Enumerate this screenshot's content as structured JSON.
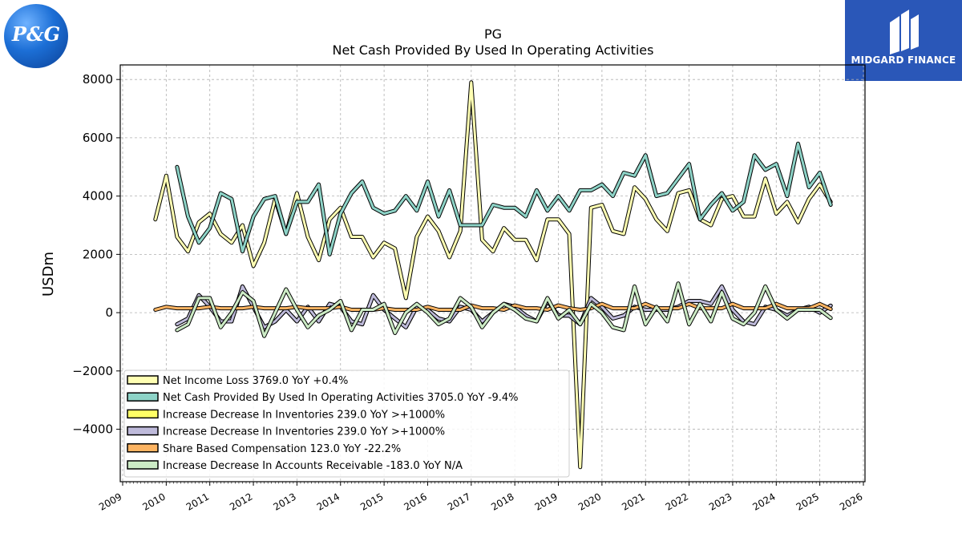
{
  "logos": {
    "left_text": "P&G",
    "right_text": "MIDGARD FINANCE"
  },
  "chart_data": {
    "type": "line",
    "title": "PG",
    "subtitle": "Net Cash Provided By Used In Operating Activities",
    "ylabel": "USDm",
    "xlim": [
      2009,
      2026
    ],
    "ylim": [
      -5800,
      8500
    ],
    "yticks": [
      -4000,
      -2000,
      0,
      2000,
      4000,
      6000,
      8000
    ],
    "ytick_labels": [
      "−4000",
      "−2000",
      "0",
      "2000",
      "4000",
      "6000",
      "8000"
    ],
    "xticks": [
      2009,
      2010,
      2011,
      2012,
      2013,
      2014,
      2015,
      2016,
      2017,
      2018,
      2019,
      2020,
      2021,
      2022,
      2023,
      2024,
      2025,
      2026
    ],
    "grid": true,
    "legend_position": "lower-left",
    "series": [
      {
        "name": "Net Income Loss  3769.0 YoY +0.4%",
        "color": "#ffffb3",
        "x": [
          2009.75,
          2010.0,
          2010.25,
          2010.5,
          2010.75,
          2011.0,
          2011.25,
          2011.5,
          2011.75,
          2012.0,
          2012.25,
          2012.5,
          2012.75,
          2013.0,
          2013.25,
          2013.5,
          2013.75,
          2014.0,
          2014.25,
          2014.5,
          2014.75,
          2015.0,
          2015.25,
          2015.5,
          2015.75,
          2016.0,
          2016.25,
          2016.5,
          2016.75,
          2017.0,
          2017.25,
          2017.5,
          2017.75,
          2018.0,
          2018.25,
          2018.5,
          2018.75,
          2019.0,
          2019.25,
          2019.5,
          2019.75,
          2020.0,
          2020.25,
          2020.5,
          2020.75,
          2021.0,
          2021.25,
          2021.5,
          2021.75,
          2022.0,
          2022.25,
          2022.5,
          2022.75,
          2023.0,
          2023.25,
          2023.5,
          2023.75,
          2024.0,
          2024.25,
          2024.5,
          2024.75,
          2025.0,
          2025.25
        ],
        "values": [
          3200,
          4700,
          2600,
          2100,
          3100,
          3400,
          2700,
          2400,
          3000,
          1600,
          2400,
          3900,
          2700,
          4100,
          2600,
          1800,
          3200,
          3600,
          2600,
          2600,
          1900,
          2400,
          2200,
          500,
          2600,
          3300,
          2800,
          1900,
          2800,
          7900,
          2500,
          2100,
          2900,
          2500,
          2500,
          1800,
          3200,
          3200,
          2700,
          -5300,
          3600,
          3700,
          2800,
          2700,
          4300,
          3900,
          3200,
          2800,
          4100,
          4200,
          3200,
          3000,
          3900,
          4000,
          3300,
          3300,
          4600,
          3400,
          3800,
          3100,
          3900,
          4400,
          3800
        ]
      },
      {
        "name": "Net Cash Provided By Used In Operating Activities  3705.0 YoY -9.4%",
        "color": "#8dd3c7",
        "x": [
          2010.25,
          2010.5,
          2010.75,
          2011.0,
          2011.25,
          2011.5,
          2011.75,
          2012.0,
          2012.25,
          2012.5,
          2012.75,
          2013.0,
          2013.25,
          2013.5,
          2013.75,
          2014.0,
          2014.25,
          2014.5,
          2014.75,
          2015.0,
          2015.25,
          2015.5,
          2015.75,
          2016.0,
          2016.25,
          2016.5,
          2016.75,
          2017.0,
          2017.25,
          2017.5,
          2017.75,
          2018.0,
          2018.25,
          2018.5,
          2018.75,
          2019.0,
          2019.25,
          2019.5,
          2019.75,
          2020.0,
          2020.25,
          2020.5,
          2020.75,
          2021.0,
          2021.25,
          2021.5,
          2021.75,
          2022.0,
          2022.25,
          2022.5,
          2022.75,
          2023.0,
          2023.25,
          2023.5,
          2023.75,
          2024.0,
          2024.25,
          2024.5,
          2024.75,
          2025.0,
          2025.25
        ],
        "values": [
          5000,
          3300,
          2400,
          2900,
          4100,
          3900,
          2100,
          3300,
          3900,
          4000,
          2700,
          3800,
          3800,
          4400,
          2000,
          3400,
          4100,
          4500,
          3600,
          3400,
          3500,
          4000,
          3500,
          4500,
          3300,
          4200,
          3000,
          3000,
          3000,
          3700,
          3600,
          3600,
          3300,
          4200,
          3500,
          4000,
          3500,
          4200,
          4200,
          4400,
          4000,
          4800,
          4700,
          5400,
          4000,
          4100,
          4600,
          5100,
          3200,
          3700,
          4100,
          3500,
          3800,
          5400,
          4900,
          5100,
          4000,
          5800,
          4300,
          4800,
          3700
        ]
      },
      {
        "name": "Increase Decrease In Inventories  239.0 YoY >+1000%",
        "color": "#ffff66",
        "x": [
          2010.25,
          2010.5,
          2010.75,
          2011.0,
          2011.25,
          2011.5,
          2011.75,
          2012.0,
          2012.25,
          2012.5,
          2012.75,
          2013.0,
          2013.25,
          2013.5,
          2013.75,
          2014.0,
          2014.25,
          2014.5,
          2014.75,
          2015.0,
          2015.25,
          2015.5,
          2015.75,
          2016.0,
          2016.25,
          2016.5,
          2016.75,
          2017.0,
          2017.25,
          2017.5,
          2017.75,
          2018.0,
          2018.25,
          2018.5,
          2018.75,
          2019.0,
          2019.25,
          2019.5,
          2019.75,
          2020.0,
          2020.25,
          2020.5,
          2020.75,
          2021.0,
          2021.25,
          2021.5,
          2021.75,
          2022.0,
          2022.25,
          2022.5,
          2022.75,
          2023.0,
          2023.25,
          2023.5,
          2023.75,
          2024.0,
          2024.25,
          2024.5,
          2024.75,
          2025.0,
          2025.25
        ],
        "values": [
          -400,
          -200,
          600,
          200,
          -300,
          -300,
          900,
          200,
          -500,
          -300,
          100,
          -300,
          200,
          -300,
          300,
          200,
          -300,
          -400,
          600,
          100,
          -200,
          -500,
          200,
          100,
          -200,
          -300,
          200,
          100,
          -300,
          0,
          300,
          200,
          -100,
          -300,
          400,
          -100,
          -100,
          -400,
          500,
          200,
          -200,
          -100,
          200,
          100,
          100,
          100,
          200,
          400,
          400,
          300,
          900,
          100,
          -300,
          -400,
          200,
          100,
          -100,
          100,
          200,
          0,
          239
        ]
      },
      {
        "name": "Increase Decrease In Inventories  239.0 YoY >+1000%",
        "color": "#bebada",
        "x": [
          2010.25,
          2010.5,
          2010.75,
          2011.0,
          2011.25,
          2011.5,
          2011.75,
          2012.0,
          2012.25,
          2012.5,
          2012.75,
          2013.0,
          2013.25,
          2013.5,
          2013.75,
          2014.0,
          2014.25,
          2014.5,
          2014.75,
          2015.0,
          2015.25,
          2015.5,
          2015.75,
          2016.0,
          2016.25,
          2016.5,
          2016.75,
          2017.0,
          2017.25,
          2017.5,
          2017.75,
          2018.0,
          2018.25,
          2018.5,
          2018.75,
          2019.0,
          2019.25,
          2019.5,
          2019.75,
          2020.0,
          2020.25,
          2020.5,
          2020.75,
          2021.0,
          2021.25,
          2021.5,
          2021.75,
          2022.0,
          2022.25,
          2022.5,
          2022.75,
          2023.0,
          2023.25,
          2023.5,
          2023.75,
          2024.0,
          2024.25,
          2024.5,
          2024.75,
          2025.0,
          2025.25
        ],
        "values": [
          -400,
          -200,
          600,
          200,
          -300,
          -300,
          900,
          200,
          -500,
          -300,
          100,
          -300,
          200,
          -300,
          300,
          200,
          -300,
          -400,
          600,
          100,
          -200,
          -500,
          200,
          100,
          -200,
          -300,
          200,
          100,
          -300,
          0,
          300,
          200,
          -100,
          -300,
          400,
          -100,
          -100,
          -400,
          500,
          200,
          -200,
          -100,
          200,
          100,
          100,
          100,
          200,
          400,
          400,
          300,
          900,
          100,
          -300,
          -400,
          200,
          100,
          -100,
          100,
          200,
          0,
          239
        ]
      },
      {
        "name": "Share Based Compensation  123.0 YoY -22.2%",
        "color": "#fdb462",
        "x": [
          2009.75,
          2010.0,
          2010.25,
          2010.5,
          2010.75,
          2011.0,
          2011.25,
          2011.5,
          2011.75,
          2012.0,
          2012.25,
          2012.5,
          2012.75,
          2013.0,
          2013.25,
          2013.5,
          2013.75,
          2014.0,
          2014.25,
          2014.5,
          2014.75,
          2015.0,
          2015.25,
          2015.5,
          2015.75,
          2016.0,
          2016.25,
          2016.5,
          2016.75,
          2017.0,
          2017.25,
          2017.5,
          2017.75,
          2018.0,
          2018.25,
          2018.5,
          2018.75,
          2019.0,
          2019.25,
          2019.5,
          2019.75,
          2020.0,
          2020.25,
          2020.5,
          2020.75,
          2021.0,
          2021.25,
          2021.5,
          2021.75,
          2022.0,
          2022.25,
          2022.5,
          2022.75,
          2023.0,
          2023.25,
          2023.5,
          2023.75,
          2024.0,
          2024.25,
          2024.5,
          2024.75,
          2025.0,
          2025.25
        ],
        "values": [
          100,
          200,
          150,
          150,
          150,
          200,
          150,
          150,
          150,
          200,
          150,
          150,
          150,
          200,
          150,
          150,
          150,
          200,
          100,
          100,
          100,
          150,
          100,
          100,
          100,
          200,
          100,
          100,
          100,
          250,
          150,
          150,
          100,
          250,
          150,
          150,
          100,
          250,
          150,
          100,
          150,
          300,
          150,
          150,
          150,
          300,
          150,
          150,
          150,
          300,
          150,
          150,
          150,
          300,
          150,
          150,
          150,
          300,
          150,
          150,
          150,
          300,
          123
        ]
      },
      {
        "name": "Increase Decrease In Accounts Receivable  -183.0 YoY N/A",
        "color": "#ccebc5",
        "x": [
          2010.25,
          2010.5,
          2010.75,
          2011.0,
          2011.25,
          2011.5,
          2011.75,
          2012.0,
          2012.25,
          2012.5,
          2012.75,
          2013.0,
          2013.25,
          2013.5,
          2013.75,
          2014.0,
          2014.25,
          2014.5,
          2014.75,
          2015.0,
          2015.25,
          2015.5,
          2015.75,
          2016.0,
          2016.25,
          2016.5,
          2016.75,
          2017.0,
          2017.25,
          2017.5,
          2017.75,
          2018.0,
          2018.25,
          2018.5,
          2018.75,
          2019.0,
          2019.25,
          2019.5,
          2019.75,
          2020.0,
          2020.25,
          2020.5,
          2020.75,
          2021.0,
          2021.25,
          2021.5,
          2021.75,
          2022.0,
          2022.25,
          2022.5,
          2022.75,
          2023.0,
          2023.25,
          2023.5,
          2023.75,
          2024.0,
          2024.25,
          2024.5,
          2024.75,
          2025.0,
          2025.25
        ],
        "values": [
          -600,
          -400,
          500,
          500,
          -500,
          0,
          700,
          400,
          -800,
          0,
          800,
          100,
          -500,
          -100,
          100,
          400,
          -600,
          100,
          100,
          300,
          -700,
          0,
          300,
          0,
          -400,
          -200,
          500,
          200,
          -500,
          0,
          300,
          100,
          -200,
          -300,
          500,
          -200,
          100,
          -400,
          300,
          0,
          -500,
          -600,
          900,
          -400,
          200,
          -300,
          1000,
          -400,
          300,
          -300,
          700,
          -200,
          -400,
          0,
          900,
          100,
          -200,
          100,
          100,
          100,
          -183
        ]
      }
    ]
  }
}
